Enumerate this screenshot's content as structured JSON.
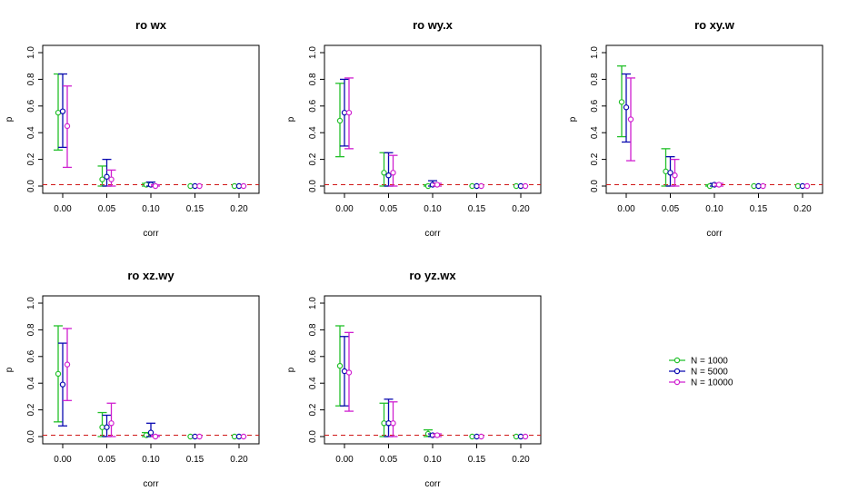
{
  "colors": {
    "N1000": "#22c02a",
    "N5000": "#0a0ab0",
    "N10000": "#d020d0",
    "refline": "#d01818"
  },
  "legend": {
    "position": "right of bottom row",
    "entries": [
      {
        "key": "N1000",
        "label": "N = 1000"
      },
      {
        "key": "N5000",
        "label": "N = 5000"
      },
      {
        "key": "N10000",
        "label": "N = 10000"
      }
    ]
  },
  "chart_data": [
    {
      "type": "scatter",
      "title": "ro wx",
      "xlabel": "corr",
      "ylabel": "p",
      "categories": [
        "0.00",
        "0.05",
        "0.10",
        "0.15",
        "0.20"
      ],
      "y_ticks": [
        "0.0",
        "0.2",
        "0.4",
        "0.6",
        "0.8",
        "1.0"
      ],
      "ylim": [
        0,
        1
      ],
      "reference_line_y": 0.01,
      "series": [
        {
          "name": "N = 1000",
          "key": "N1000",
          "mean": [
            0.55,
            0.05,
            0.01,
            0.0,
            0.0
          ],
          "lower": [
            0.27,
            0.0,
            0.0,
            0.0,
            0.0
          ],
          "upper": [
            0.84,
            0.15,
            0.02,
            0.0,
            0.0
          ]
        },
        {
          "name": "N = 5000",
          "key": "N5000",
          "mean": [
            0.56,
            0.07,
            0.01,
            0.0,
            0.0
          ],
          "lower": [
            0.29,
            0.0,
            0.0,
            0.0,
            0.0
          ],
          "upper": [
            0.84,
            0.2,
            0.03,
            0.0,
            0.0
          ]
        },
        {
          "name": "N = 10000",
          "key": "N10000",
          "mean": [
            0.45,
            0.05,
            0.0,
            0.0,
            0.0
          ],
          "lower": [
            0.14,
            0.0,
            0.0,
            0.0,
            0.0
          ],
          "upper": [
            0.75,
            0.12,
            0.01,
            0.0,
            0.0
          ]
        }
      ]
    },
    {
      "type": "scatter",
      "title": "ro wy.x",
      "xlabel": "corr",
      "ylabel": "p",
      "categories": [
        "0.00",
        "0.05",
        "0.10",
        "0.15",
        "0.20"
      ],
      "y_ticks": [
        "0.0",
        "0.2",
        "0.4",
        "0.6",
        "0.8",
        "1.0"
      ],
      "ylim": [
        0,
        1
      ],
      "reference_line_y": 0.01,
      "series": [
        {
          "name": "N = 1000",
          "key": "N1000",
          "mean": [
            0.49,
            0.1,
            0.0,
            0.0,
            0.0
          ],
          "lower": [
            0.22,
            0.0,
            0.0,
            0.0,
            0.0
          ],
          "upper": [
            0.77,
            0.25,
            0.01,
            0.0,
            0.0
          ]
        },
        {
          "name": "N = 5000",
          "key": "N5000",
          "mean": [
            0.55,
            0.08,
            0.01,
            0.0,
            0.0
          ],
          "lower": [
            0.3,
            0.0,
            0.0,
            0.0,
            0.0
          ],
          "upper": [
            0.8,
            0.25,
            0.04,
            0.0,
            0.0
          ]
        },
        {
          "name": "N = 10000",
          "key": "N10000",
          "mean": [
            0.55,
            0.1,
            0.01,
            0.0,
            0.0
          ],
          "lower": [
            0.28,
            0.0,
            0.0,
            0.0,
            0.0
          ],
          "upper": [
            0.81,
            0.23,
            0.02,
            0.0,
            0.0
          ]
        }
      ]
    },
    {
      "type": "scatter",
      "title": "ro xy.w",
      "xlabel": "corr",
      "ylabel": "p",
      "categories": [
        "0.00",
        "0.05",
        "0.10",
        "0.15",
        "0.20"
      ],
      "y_ticks": [
        "0.0",
        "0.2",
        "0.4",
        "0.6",
        "0.8",
        "1.0"
      ],
      "ylim": [
        0,
        1
      ],
      "reference_line_y": 0.01,
      "series": [
        {
          "name": "N = 1000",
          "key": "N1000",
          "mean": [
            0.63,
            0.11,
            0.0,
            0.0,
            0.0
          ],
          "lower": [
            0.37,
            0.0,
            0.0,
            0.0,
            0.0
          ],
          "upper": [
            0.9,
            0.28,
            0.01,
            0.0,
            0.0
          ]
        },
        {
          "name": "N = 5000",
          "key": "N5000",
          "mean": [
            0.59,
            0.1,
            0.01,
            0.0,
            0.0
          ],
          "lower": [
            0.33,
            0.0,
            0.0,
            0.0,
            0.0
          ],
          "upper": [
            0.84,
            0.22,
            0.02,
            0.0,
            0.0
          ]
        },
        {
          "name": "N = 10000",
          "key": "N10000",
          "mean": [
            0.5,
            0.08,
            0.01,
            0.0,
            0.0
          ],
          "lower": [
            0.19,
            0.0,
            0.0,
            0.0,
            0.0
          ],
          "upper": [
            0.81,
            0.2,
            0.02,
            0.0,
            0.0
          ]
        }
      ]
    },
    {
      "type": "scatter",
      "title": "ro xz.wy",
      "xlabel": "corr",
      "ylabel": "p",
      "categories": [
        "0.00",
        "0.05",
        "0.10",
        "0.15",
        "0.20"
      ],
      "y_ticks": [
        "0.0",
        "0.2",
        "0.4",
        "0.6",
        "0.8",
        "1.0"
      ],
      "ylim": [
        0,
        1
      ],
      "reference_line_y": 0.01,
      "series": [
        {
          "name": "N = 1000",
          "key": "N1000",
          "mean": [
            0.47,
            0.07,
            0.01,
            0.0,
            0.0
          ],
          "lower": [
            0.11,
            0.0,
            0.0,
            0.0,
            0.0
          ],
          "upper": [
            0.83,
            0.18,
            0.03,
            0.0,
            0.0
          ]
        },
        {
          "name": "N = 5000",
          "key": "N5000",
          "mean": [
            0.39,
            0.07,
            0.03,
            0.0,
            0.0
          ],
          "lower": [
            0.08,
            0.0,
            0.0,
            0.0,
            0.0
          ],
          "upper": [
            0.7,
            0.16,
            0.1,
            0.0,
            0.0
          ]
        },
        {
          "name": "N = 10000",
          "key": "N10000",
          "mean": [
            0.54,
            0.1,
            0.0,
            0.0,
            0.0
          ],
          "lower": [
            0.27,
            0.0,
            0.0,
            0.0,
            0.0
          ],
          "upper": [
            0.81,
            0.25,
            0.01,
            0.0,
            0.0
          ]
        }
      ]
    },
    {
      "type": "scatter",
      "title": "ro yz.wx",
      "xlabel": "corr",
      "ylabel": "p",
      "categories": [
        "0.00",
        "0.05",
        "0.10",
        "0.15",
        "0.20"
      ],
      "y_ticks": [
        "0.0",
        "0.2",
        "0.4",
        "0.6",
        "0.8",
        "1.0"
      ],
      "ylim": [
        0,
        1
      ],
      "reference_line_y": 0.01,
      "series": [
        {
          "name": "N = 1000",
          "key": "N1000",
          "mean": [
            0.53,
            0.1,
            0.02,
            0.0,
            0.0
          ],
          "lower": [
            0.23,
            0.0,
            0.0,
            0.0,
            0.0
          ],
          "upper": [
            0.83,
            0.25,
            0.05,
            0.0,
            0.0
          ]
        },
        {
          "name": "N = 5000",
          "key": "N5000",
          "mean": [
            0.49,
            0.1,
            0.01,
            0.0,
            0.0
          ],
          "lower": [
            0.23,
            0.0,
            0.0,
            0.0,
            0.0
          ],
          "upper": [
            0.75,
            0.28,
            0.02,
            0.0,
            0.0
          ]
        },
        {
          "name": "N = 10000",
          "key": "N10000",
          "mean": [
            0.48,
            0.1,
            0.01,
            0.0,
            0.0
          ],
          "lower": [
            0.19,
            0.0,
            0.0,
            0.0,
            0.0
          ],
          "upper": [
            0.78,
            0.26,
            0.02,
            0.0,
            0.0
          ]
        }
      ]
    }
  ]
}
